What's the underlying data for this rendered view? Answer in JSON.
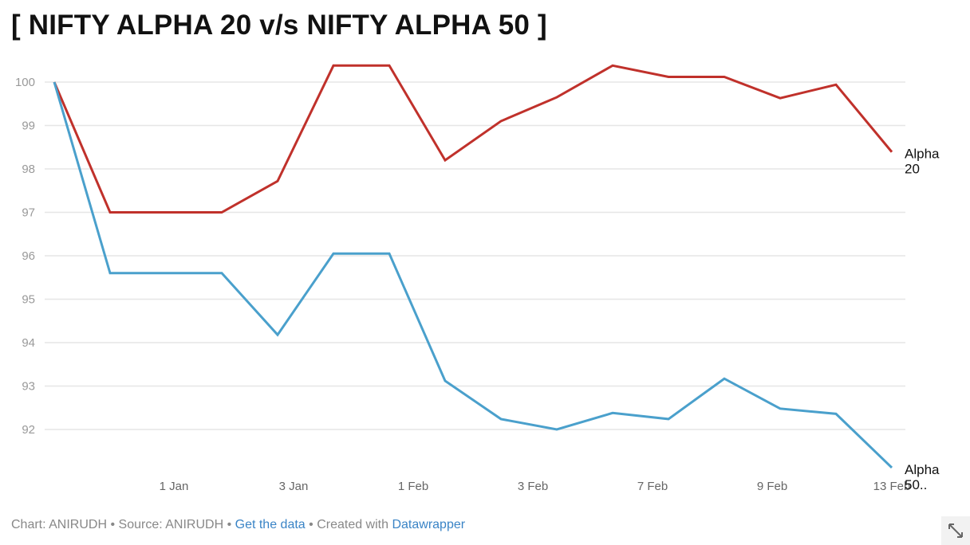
{
  "title": "[ NIFTY ALPHA 20 v/s NIFTY ALPHA 50 ]",
  "chart_data": {
    "type": "line",
    "title": "[ NIFTY ALPHA 20 v/s NIFTY ALPHA 50 ]",
    "xlabel": "",
    "ylabel": "",
    "ylim": [
      91,
      100.5
    ],
    "yticks": [
      100,
      99,
      98,
      97,
      96,
      95,
      94,
      93,
      92
    ],
    "xtick_labels": [
      "1 Jan",
      "3 Jan",
      "1 Feb",
      "3 Feb",
      "7 Feb",
      "9 Feb",
      "13 Feb"
    ],
    "grid": true,
    "legend": "direct labels at line ends",
    "series": [
      {
        "name": "Alpha 20",
        "color": "#c0312b",
        "values": [
          100,
          97.0,
          97.0,
          97.0,
          97.72,
          100.38,
          100.38,
          98.2,
          99.1,
          99.65,
          100.38,
          100.12,
          100.12,
          99.63,
          99.94,
          98.39
        ]
      },
      {
        "name": "Alpha 50..",
        "color": "#4aa0cc",
        "values": [
          100,
          95.6,
          95.6,
          95.6,
          94.18,
          96.05,
          96.05,
          93.12,
          92.24,
          92.0,
          92.38,
          92.24,
          93.17,
          92.48,
          92.36,
          91.12
        ]
      }
    ]
  },
  "footer": {
    "chart": "Chart: ANIRUDH",
    "sep": " • ",
    "source": "Source: ANIRUDH",
    "get_data": "Get the data",
    "created": "Created with",
    "tool": "Datawrapper"
  },
  "icons": {
    "resize": "expand-diagonal-arrows-icon"
  }
}
